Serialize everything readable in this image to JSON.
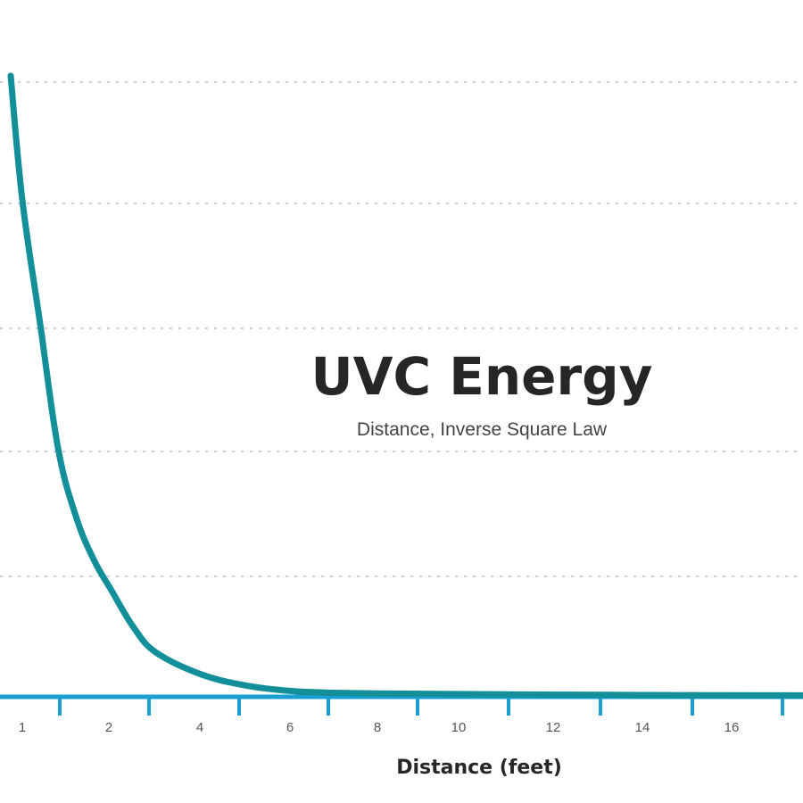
{
  "chart_data": {
    "type": "line",
    "title": "UVC Energy",
    "subtitle": "Distance, Inverse Square Law",
    "xlabel": "Distance (feet)",
    "ylabel": "",
    "x_tick_labels": [
      "1",
      "2",
      "4",
      "6",
      "8",
      "10",
      "12",
      "14",
      "16"
    ],
    "grid": "horizontal dotted",
    "series": [
      {
        "color": "#138f9a",
        "points": [
          {
            "x": 0.85,
            "y": 100
          },
          {
            "x": 1.0,
            "y": 80
          },
          {
            "x": 1.2,
            "y": 60
          },
          {
            "x": 1.4,
            "y": 40
          },
          {
            "x": 1.6,
            "y": 29
          },
          {
            "x": 1.8,
            "y": 22
          },
          {
            "x": 2.0,
            "y": 17
          },
          {
            "x": 2.5,
            "y": 11
          },
          {
            "x": 3.0,
            "y": 7
          },
          {
            "x": 4.0,
            "y": 3.5
          },
          {
            "x": 5.0,
            "y": 1.7
          },
          {
            "x": 6.0,
            "y": 0.8
          },
          {
            "x": 7.0,
            "y": 0.5
          },
          {
            "x": 8.0,
            "y": 0.4
          },
          {
            "x": 10.0,
            "y": 0.3
          },
          {
            "x": 12.0,
            "y": 0.2
          },
          {
            "x": 14.0,
            "y": 0.15
          },
          {
            "x": 16.0,
            "y": 0.1
          },
          {
            "x": 17.5,
            "y": 0.08
          }
        ]
      }
    ],
    "colors": {
      "line": "#138f9a",
      "axis": "#1b9fd2",
      "grid": "#cfcfcf",
      "text": "#262626"
    }
  }
}
